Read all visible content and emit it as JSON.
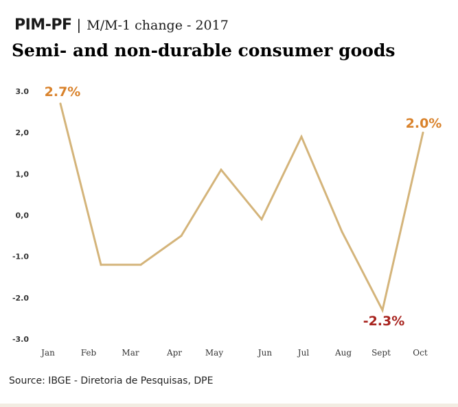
{
  "header": {
    "brand": "PIM-PF",
    "separator": "|",
    "subtitle": "M/M-1 change - 2017"
  },
  "title": "Semi- and non-durable consumer goods",
  "source": "Source: IBGE - Diretoria de Pesquisas, DPE",
  "colors": {
    "line": "#d4b47a",
    "positive_label": "#d9822b",
    "negative_label": "#a8231e",
    "axis_text": "#333333"
  },
  "chart_data": {
    "type": "line",
    "categories": [
      "Jan",
      "Feb",
      "Mar",
      "Apr",
      "May",
      "Jun",
      "Jul",
      "Aug",
      "Sept",
      "Oct"
    ],
    "values": [
      2.7,
      -1.2,
      -1.2,
      -0.5,
      1.1,
      -0.1,
      1.9,
      -0.4,
      -2.3,
      2.0
    ],
    "yticks": [
      "3.0",
      "2,0",
      "1,0",
      "0,0",
      "-1.0",
      "-2.0",
      "-3.0"
    ],
    "ylim": [
      -3,
      3
    ],
    "grid": false,
    "annotations": [
      {
        "index": 0,
        "text": "2.7%",
        "kind": "positive"
      },
      {
        "index": 9,
        "text": "2.0%",
        "kind": "positive"
      },
      {
        "index": 8,
        "text": "-2.3%",
        "kind": "negative"
      }
    ]
  }
}
